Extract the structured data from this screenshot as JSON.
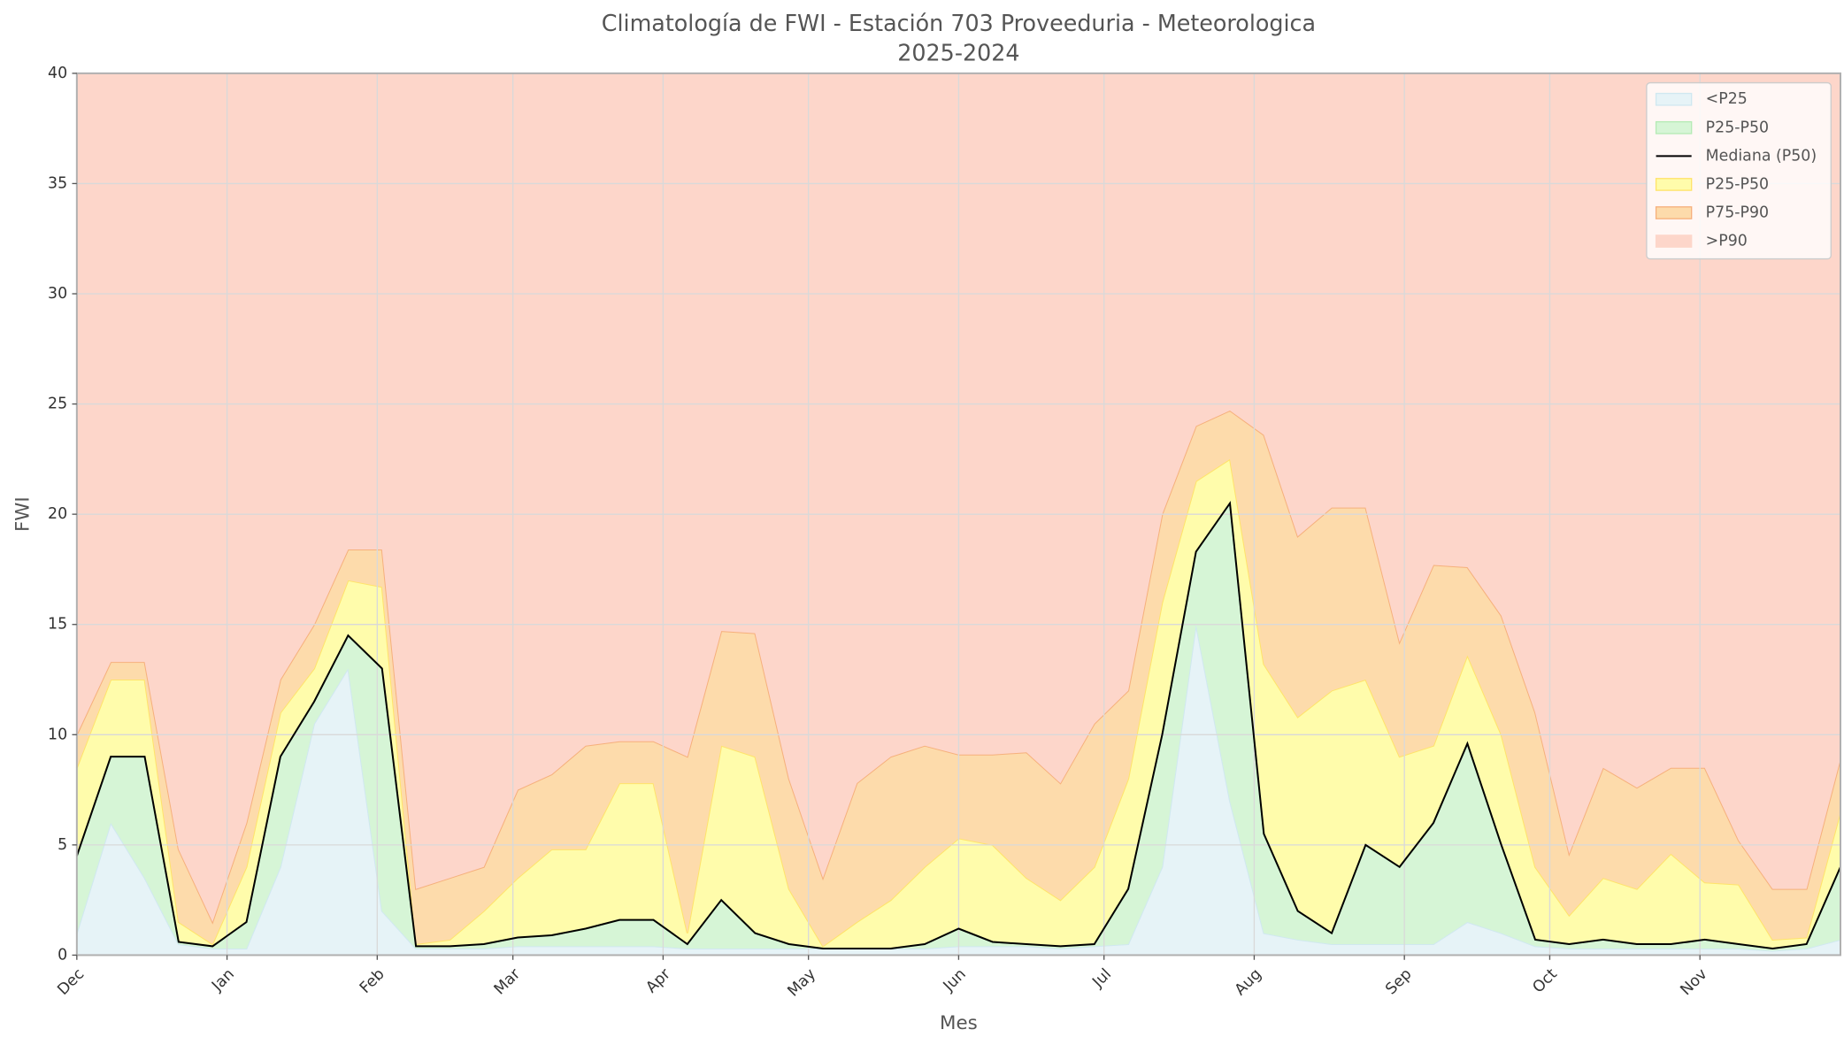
{
  "chart_data": {
    "type": "area",
    "title": "Climatología de FWI - Estación 703 Proveeduria - Meteorologica",
    "subtitle": "2025-2024",
    "x_label": "Mes",
    "y_label": "FWI",
    "x": [
      0,
      7,
      14,
      21,
      28,
      35,
      42,
      49,
      56,
      63,
      70,
      77,
      84,
      91,
      98,
      105,
      112,
      119,
      126,
      133,
      140,
      147,
      154,
      161,
      168,
      175,
      182,
      189,
      196,
      203,
      210,
      217,
      224,
      231,
      238,
      245,
      252,
      259,
      266,
      273,
      280,
      287,
      294,
      301,
      308,
      315,
      322,
      329,
      336,
      343,
      350,
      357,
      364
    ],
    "xlim": [
      0,
      364
    ],
    "xticks": [
      {
        "value": 0,
        "label": "Dec"
      },
      {
        "value": 31,
        "label": "Jan"
      },
      {
        "value": 62,
        "label": "Feb"
      },
      {
        "value": 90,
        "label": "Mar"
      },
      {
        "value": 121,
        "label": "Apr"
      },
      {
        "value": 151,
        "label": "May"
      },
      {
        "value": 182,
        "label": "Jun"
      },
      {
        "value": 212,
        "label": "Jul"
      },
      {
        "value": 243,
        "label": "Aug"
      },
      {
        "value": 274,
        "label": "Sep"
      },
      {
        "value": 304,
        "label": "Oct"
      },
      {
        "value": 335,
        "label": "Nov"
      }
    ],
    "ylim": [
      0,
      40
    ],
    "yticks": [
      0,
      5,
      10,
      15,
      20,
      25,
      30,
      35,
      40
    ],
    "grid": true,
    "legend": "upper right",
    "series": [
      {
        "name": "<P25",
        "type": "area",
        "color": "#e6f3f7",
        "edge": "#d0e8f0",
        "values": [
          1,
          6,
          3.5,
          0.5,
          0.3,
          0.3,
          4,
          10.5,
          13,
          2,
          0.3,
          0.3,
          0.3,
          0.4,
          0.4,
          0.4,
          0.4,
          0.4,
          0.3,
          0.3,
          0.3,
          0.3,
          0.3,
          0.3,
          0.3,
          0.3,
          0.4,
          0.4,
          0.4,
          0.3,
          0.4,
          0.5,
          4,
          15,
          7,
          1,
          0.7,
          0.5,
          0.5,
          0.5,
          0.5,
          1.5,
          1,
          0.4,
          0.3,
          0.3,
          0.3,
          0.3,
          0.3,
          0.3,
          0.2,
          0.3,
          0.7
        ]
      },
      {
        "name": "P25-P50",
        "type": "area",
        "color": "#d6f5d6",
        "edge": "#b5ebb5",
        "values": [
          4.5,
          9,
          9,
          0.6,
          0.4,
          1.5,
          9,
          11.5,
          14.5,
          13,
          0.4,
          0.4,
          0.5,
          0.8,
          0.9,
          1.2,
          1.6,
          1.6,
          0.5,
          2.5,
          1,
          0.5,
          0.3,
          0.3,
          0.3,
          0.5,
          1.2,
          0.6,
          0.5,
          0.4,
          0.5,
          3,
          10,
          18.3,
          20.5,
          5.5,
          2,
          1,
          5,
          4,
          6,
          9.6,
          5,
          0.7,
          0.5,
          0.7,
          0.5,
          0.5,
          0.7,
          0.5,
          0.3,
          0.5,
          4
        ]
      },
      {
        "name": "Mediana (P50)",
        "type": "line",
        "color": "#000000",
        "values": [
          4.5,
          9,
          9,
          0.6,
          0.4,
          1.5,
          9,
          11.5,
          14.5,
          13,
          0.4,
          0.4,
          0.5,
          0.8,
          0.9,
          1.2,
          1.6,
          1.6,
          0.5,
          2.5,
          1,
          0.5,
          0.3,
          0.3,
          0.3,
          0.5,
          1.2,
          0.6,
          0.5,
          0.4,
          0.5,
          3,
          10,
          18.3,
          20.5,
          5.5,
          2,
          1,
          5,
          4,
          6,
          9.6,
          5,
          0.7,
          0.5,
          0.7,
          0.5,
          0.5,
          0.7,
          0.5,
          0.3,
          0.5,
          4
        ]
      },
      {
        "name": "P25-P50",
        "type": "area",
        "color": "#fffcab",
        "edge": "#ffe36a",
        "values": [
          8.5,
          12.5,
          12.5,
          1.5,
          0.5,
          4,
          11,
          13,
          17,
          16.7,
          0.5,
          0.7,
          2,
          3.5,
          4.8,
          4.8,
          7.8,
          7.8,
          1,
          9.5,
          9,
          3,
          0.4,
          1.5,
          2.5,
          4,
          5.3,
          5,
          3.5,
          2.5,
          4,
          8,
          16,
          21.5,
          22.5,
          13.2,
          10.8,
          12,
          12.5,
          9,
          9.5,
          13.6,
          10,
          4,
          1.8,
          3.5,
          3,
          4.6,
          3.3,
          3.2,
          0.7,
          0.8,
          6.5
        ]
      },
      {
        "name": "P75-P90",
        "type": "area",
        "color": "#fddbab",
        "edge": "#f6b07c",
        "values": [
          10,
          13.3,
          13.3,
          4.8,
          1.5,
          6,
          12.5,
          15,
          18.4,
          18.4,
          3,
          3.5,
          4,
          7.5,
          8.2,
          9.5,
          9.7,
          9.7,
          9,
          14.7,
          14.6,
          8,
          3.5,
          7.8,
          9,
          9.5,
          9.1,
          9.1,
          9.2,
          7.8,
          10.5,
          12,
          20,
          24,
          24.7,
          23.6,
          19,
          20.3,
          20.3,
          14.2,
          17.7,
          17.6,
          15.4,
          11,
          4.6,
          8.5,
          7.6,
          8.5,
          8.5,
          5.2,
          3,
          3,
          8.9
        ]
      },
      {
        "name": ">P90",
        "type": "area",
        "color": "#fdd6ca"
      }
    ]
  }
}
